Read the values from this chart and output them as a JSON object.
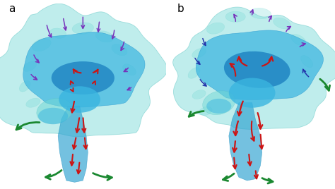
{
  "bg_color": "#ffffff",
  "label_a": "a",
  "label_b": "b",
  "label_fontsize": 11,
  "outer_color": "#72d8d5",
  "inner_color": "#3ab5e0",
  "ventricle_color": "#1a7fc0",
  "stem_color": "#2aa0d0",
  "red": "#cc1515",
  "blue": "#2233aa",
  "purple": "#7733bb",
  "green": "#1a8830",
  "figsize": [
    4.74,
    2.68
  ],
  "dpi": 100
}
